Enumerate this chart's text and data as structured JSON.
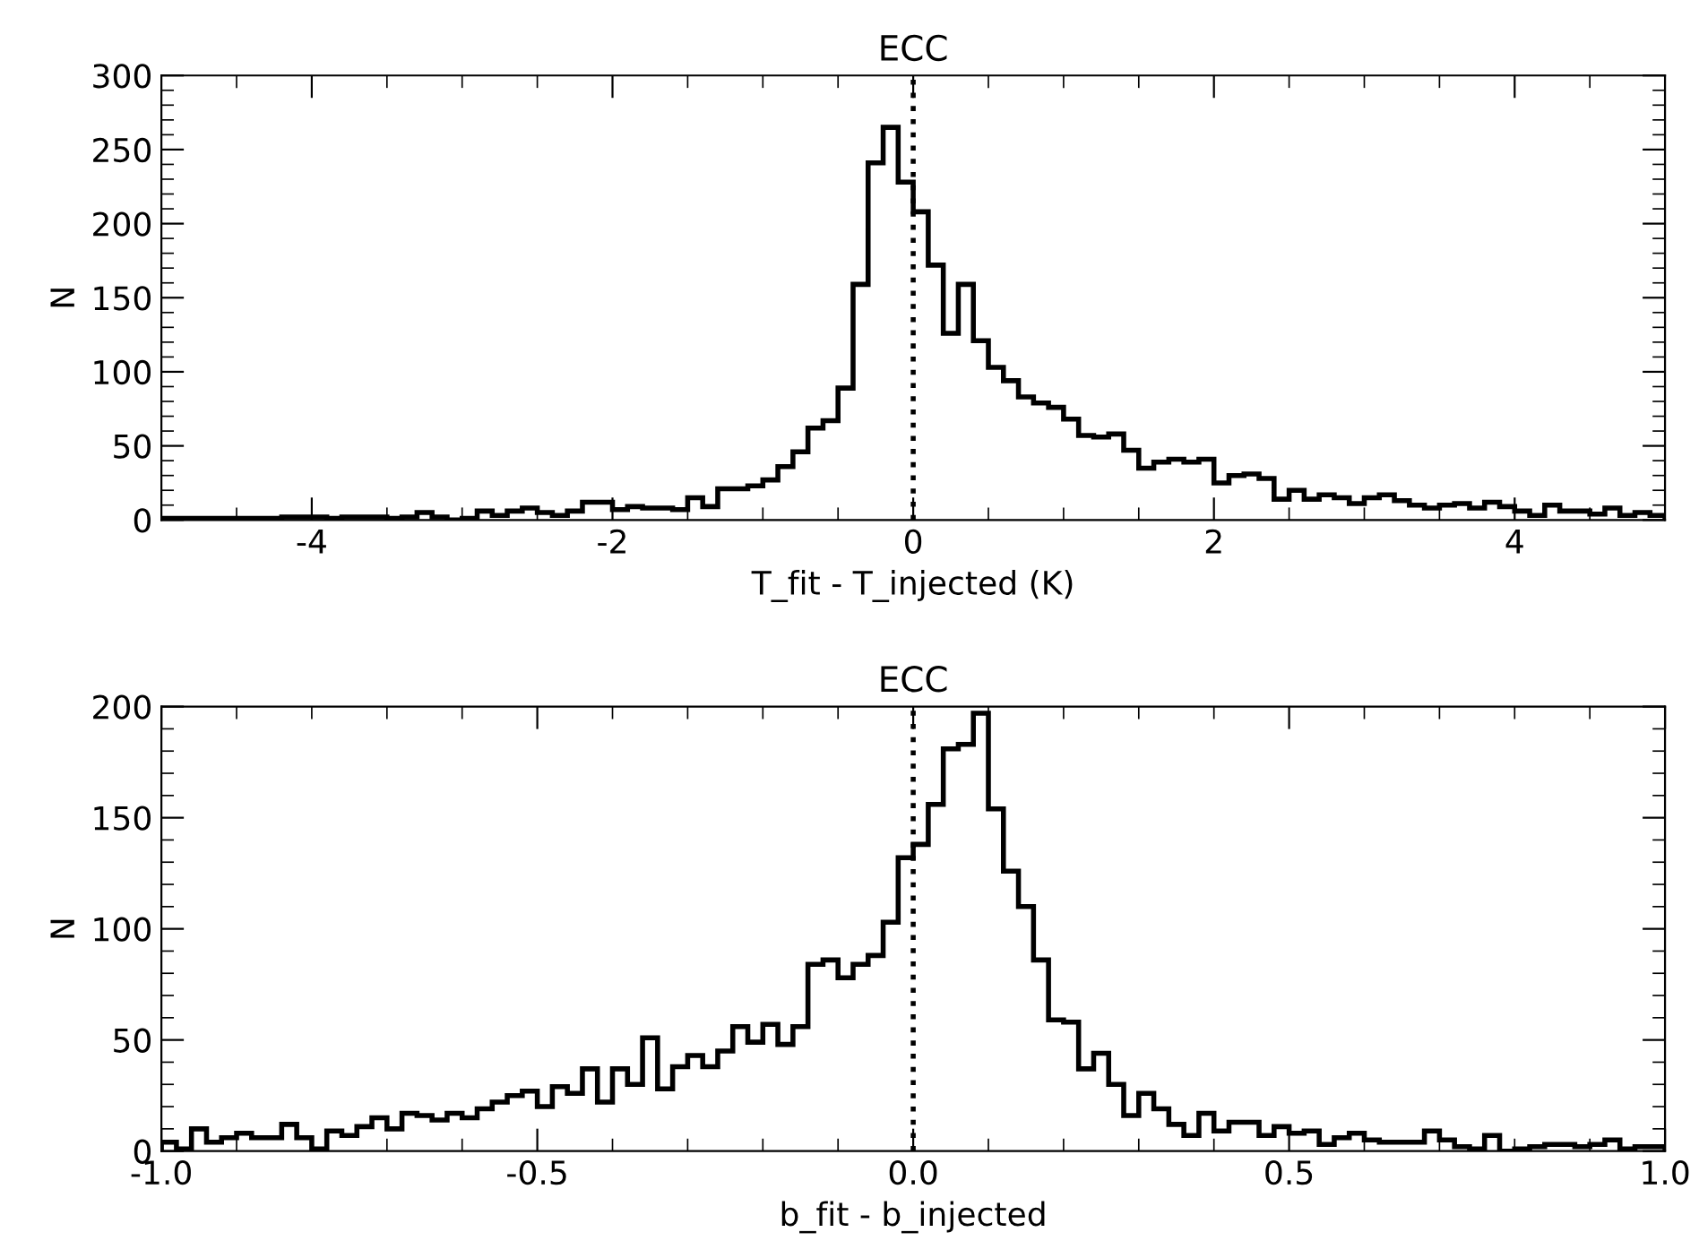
{
  "chart_data": [
    {
      "type": "histogram",
      "title": "ECC",
      "xlabel": "T_fit - T_injected (K)",
      "ylabel": "N",
      "color": "#000000",
      "bins": [
        -5.0,
        -4.9,
        -4.8,
        -4.7,
        -4.6,
        -4.5,
        -4.4,
        -4.3,
        -4.2,
        -4.1,
        -4.0,
        -3.9,
        -3.8,
        -3.7,
        -3.6,
        -3.5,
        -3.4,
        -3.3,
        -3.2,
        -3.1,
        -3.0,
        -2.9,
        -2.8,
        -2.7,
        -2.6,
        -2.5,
        -2.4,
        -2.3,
        -2.2,
        -2.1,
        -2.0,
        -1.9,
        -1.8,
        -1.7,
        -1.6,
        -1.5,
        -1.4,
        -1.3,
        -1.2,
        -1.1,
        -1.0,
        -0.9,
        -0.8,
        -0.7,
        -0.6,
        -0.5,
        -0.4,
        -0.3,
        -0.2,
        -0.1,
        0.0,
        0.1,
        0.2,
        0.3,
        0.4,
        0.5,
        0.6,
        0.7,
        0.8,
        0.9,
        1.0,
        1.1,
        1.2,
        1.3,
        1.4,
        1.5,
        1.6,
        1.7,
        1.8,
        1.9,
        2.0,
        2.1,
        2.2,
        2.3,
        2.4,
        2.5,
        2.6,
        2.7,
        2.8,
        2.9,
        3.0,
        3.1,
        3.2,
        3.3,
        3.4,
        3.5,
        3.6,
        3.7,
        3.8,
        3.9,
        4.0,
        4.1,
        4.2,
        4.3,
        4.4,
        4.5,
        4.6,
        4.7,
        4.8,
        4.9,
        5.0
      ],
      "values": [
        1,
        1,
        1,
        1,
        1,
        1,
        1,
        1,
        2,
        2,
        2,
        1,
        2,
        2,
        2,
        1,
        2,
        5,
        2,
        0,
        1,
        6,
        3,
        6,
        8,
        5,
        3,
        6,
        12,
        12,
        7,
        9,
        8,
        8,
        7,
        15,
        9,
        21,
        21,
        23,
        27,
        36,
        46,
        62,
        67,
        89,
        159,
        241,
        265,
        228,
        208,
        172,
        126,
        159,
        121,
        103,
        94,
        83,
        79,
        76,
        68,
        57,
        56,
        58,
        47,
        35,
        39,
        41,
        39,
        41,
        25,
        30,
        31,
        28,
        14,
        20,
        14,
        17,
        15,
        11,
        15,
        17,
        13,
        10,
        8,
        10,
        11,
        8,
        12,
        9,
        6,
        3,
        10,
        6,
        6,
        4,
        8,
        3,
        5,
        3
      ],
      "xlim": [
        -5,
        5
      ],
      "ylim": [
        0,
        300
      ],
      "xticks": [
        -4,
        -2,
        0,
        2,
        4,
        {
          "value": -4.5,
          "label": null
        },
        {
          "value": -3.5,
          "label": null
        },
        {
          "value": -3,
          "label": null
        },
        {
          "value": -2.5,
          "label": null
        },
        {
          "value": -1.5,
          "label": null
        },
        {
          "value": -1,
          "label": null
        },
        {
          "value": -0.5,
          "label": null
        },
        {
          "value": 0.5,
          "label": null
        },
        {
          "value": 1,
          "label": null
        },
        {
          "value": 1.5,
          "label": null
        },
        {
          "value": 2.5,
          "label": null
        },
        {
          "value": 3,
          "label": null
        },
        {
          "value": 3.5,
          "label": null
        },
        {
          "value": 4.5,
          "label": null
        }
      ],
      "yticks": [
        0,
        50,
        100,
        150,
        200,
        250,
        300,
        {
          "value": 10,
          "label": null
        },
        {
          "value": 20,
          "label": null
        },
        {
          "value": 30,
          "label": null
        },
        {
          "value": 40,
          "label": null
        },
        {
          "value": 60,
          "label": null
        },
        {
          "value": 70,
          "label": null
        },
        {
          "value": 80,
          "label": null
        },
        {
          "value": 90,
          "label": null
        },
        {
          "value": 110,
          "label": null
        },
        {
          "value": 120,
          "label": null
        },
        {
          "value": 130,
          "label": null
        },
        {
          "value": 140,
          "label": null
        },
        {
          "value": 160,
          "label": null
        },
        {
          "value": 170,
          "label": null
        },
        {
          "value": 180,
          "label": null
        },
        {
          "value": 190,
          "label": null
        },
        {
          "value": 210,
          "label": null
        },
        {
          "value": 220,
          "label": null
        },
        {
          "value": 230,
          "label": null
        },
        {
          "value": 240,
          "label": null
        },
        {
          "value": 260,
          "label": null
        },
        {
          "value": 270,
          "label": null
        },
        {
          "value": 280,
          "label": null
        },
        {
          "value": 290,
          "label": null
        }
      ],
      "ref_lines": [
        {
          "axis": "x",
          "value": 0,
          "line_style": "dotted",
          "color": "#000000"
        }
      ],
      "grid": false,
      "legend": false
    },
    {
      "type": "histogram",
      "title": "ECC",
      "xlabel": "b_fit - b_injected",
      "ylabel": "N",
      "color": "#000000",
      "bins": [
        -1.0,
        -0.98,
        -0.96,
        -0.94,
        -0.92,
        -0.9,
        -0.88,
        -0.86,
        -0.84,
        -0.82,
        -0.8,
        -0.78,
        -0.76,
        -0.74,
        -0.72,
        -0.7,
        -0.68,
        -0.66,
        -0.64,
        -0.62,
        -0.6,
        -0.58,
        -0.56,
        -0.54,
        -0.52,
        -0.5,
        -0.48,
        -0.46,
        -0.44,
        -0.42,
        -0.4,
        -0.38,
        -0.36,
        -0.34,
        -0.32,
        -0.3,
        -0.28,
        -0.26,
        -0.24,
        -0.22,
        -0.2,
        -0.18,
        -0.16,
        -0.14,
        -0.12,
        -0.1,
        -0.08,
        -0.06,
        -0.04,
        -0.02,
        0.0,
        0.02,
        0.04,
        0.06,
        0.08,
        0.1,
        0.12,
        0.14,
        0.16,
        0.18,
        0.2,
        0.22,
        0.24,
        0.26,
        0.28,
        0.3,
        0.32,
        0.34,
        0.36,
        0.38,
        0.4,
        0.42,
        0.44,
        0.46,
        0.48,
        0.5,
        0.52,
        0.54,
        0.56,
        0.58,
        0.6,
        0.62,
        0.64,
        0.66,
        0.68,
        0.7,
        0.72,
        0.74,
        0.76,
        0.78,
        0.8,
        0.82,
        0.84,
        0.86,
        0.88,
        0.9,
        0.92,
        0.94,
        0.96,
        0.98,
        1.0
      ],
      "values": [
        4,
        1,
        10,
        4,
        6,
        8,
        6,
        6,
        12,
        6,
        1,
        9,
        7,
        11,
        15,
        10,
        17,
        16,
        14,
        17,
        15,
        19,
        22,
        25,
        27,
        20,
        29,
        26,
        37,
        22,
        37,
        30,
        51,
        28,
        38,
        43,
        38,
        45,
        56,
        49,
        57,
        48,
        56,
        84,
        86,
        78,
        84,
        88,
        103,
        132,
        138,
        156,
        181,
        183,
        197,
        154,
        126,
        110,
        86,
        59,
        58,
        37,
        44,
        30,
        16,
        26,
        19,
        12,
        7,
        17,
        9,
        13,
        13,
        7,
        11,
        8,
        9,
        3,
        6,
        8,
        5,
        4,
        4,
        4,
        9,
        5,
        2,
        1,
        7,
        0,
        1,
        2,
        3,
        3,
        2,
        3,
        5,
        1,
        2,
        2
      ],
      "xlim": [
        -1,
        1
      ],
      "ylim": [
        0,
        200
      ],
      "xticks": [
        {
          "value": -1,
          "label": "-1.0"
        },
        {
          "value": -0.5,
          "label": "-0.5"
        },
        {
          "value": 0,
          "label": "0.0"
        },
        {
          "value": 0.5,
          "label": "0.5"
        },
        {
          "value": 1,
          "label": "1.0"
        },
        {
          "value": -0.9,
          "label": null
        },
        {
          "value": -0.8,
          "label": null
        },
        {
          "value": -0.7,
          "label": null
        },
        {
          "value": -0.6,
          "label": null
        },
        {
          "value": -0.4,
          "label": null
        },
        {
          "value": -0.3,
          "label": null
        },
        {
          "value": -0.2,
          "label": null
        },
        {
          "value": -0.1,
          "label": null
        },
        {
          "value": 0.1,
          "label": null
        },
        {
          "value": 0.2,
          "label": null
        },
        {
          "value": 0.3,
          "label": null
        },
        {
          "value": 0.4,
          "label": null
        },
        {
          "value": 0.6,
          "label": null
        },
        {
          "value": 0.7,
          "label": null
        },
        {
          "value": 0.8,
          "label": null
        },
        {
          "value": 0.9,
          "label": null
        }
      ],
      "yticks": [
        0,
        50,
        100,
        150,
        200,
        {
          "value": 10,
          "label": null
        },
        {
          "value": 20,
          "label": null
        },
        {
          "value": 30,
          "label": null
        },
        {
          "value": 40,
          "label": null
        },
        {
          "value": 60,
          "label": null
        },
        {
          "value": 70,
          "label": null
        },
        {
          "value": 80,
          "label": null
        },
        {
          "value": 90,
          "label": null
        },
        {
          "value": 110,
          "label": null
        },
        {
          "value": 120,
          "label": null
        },
        {
          "value": 130,
          "label": null
        },
        {
          "value": 140,
          "label": null
        },
        {
          "value": 160,
          "label": null
        },
        {
          "value": 170,
          "label": null
        },
        {
          "value": 180,
          "label": null
        },
        {
          "value": 190,
          "label": null
        }
      ],
      "ref_lines": [
        {
          "axis": "x",
          "value": 0,
          "line_style": "dotted",
          "color": "#000000"
        }
      ],
      "grid": false,
      "legend": false
    }
  ]
}
